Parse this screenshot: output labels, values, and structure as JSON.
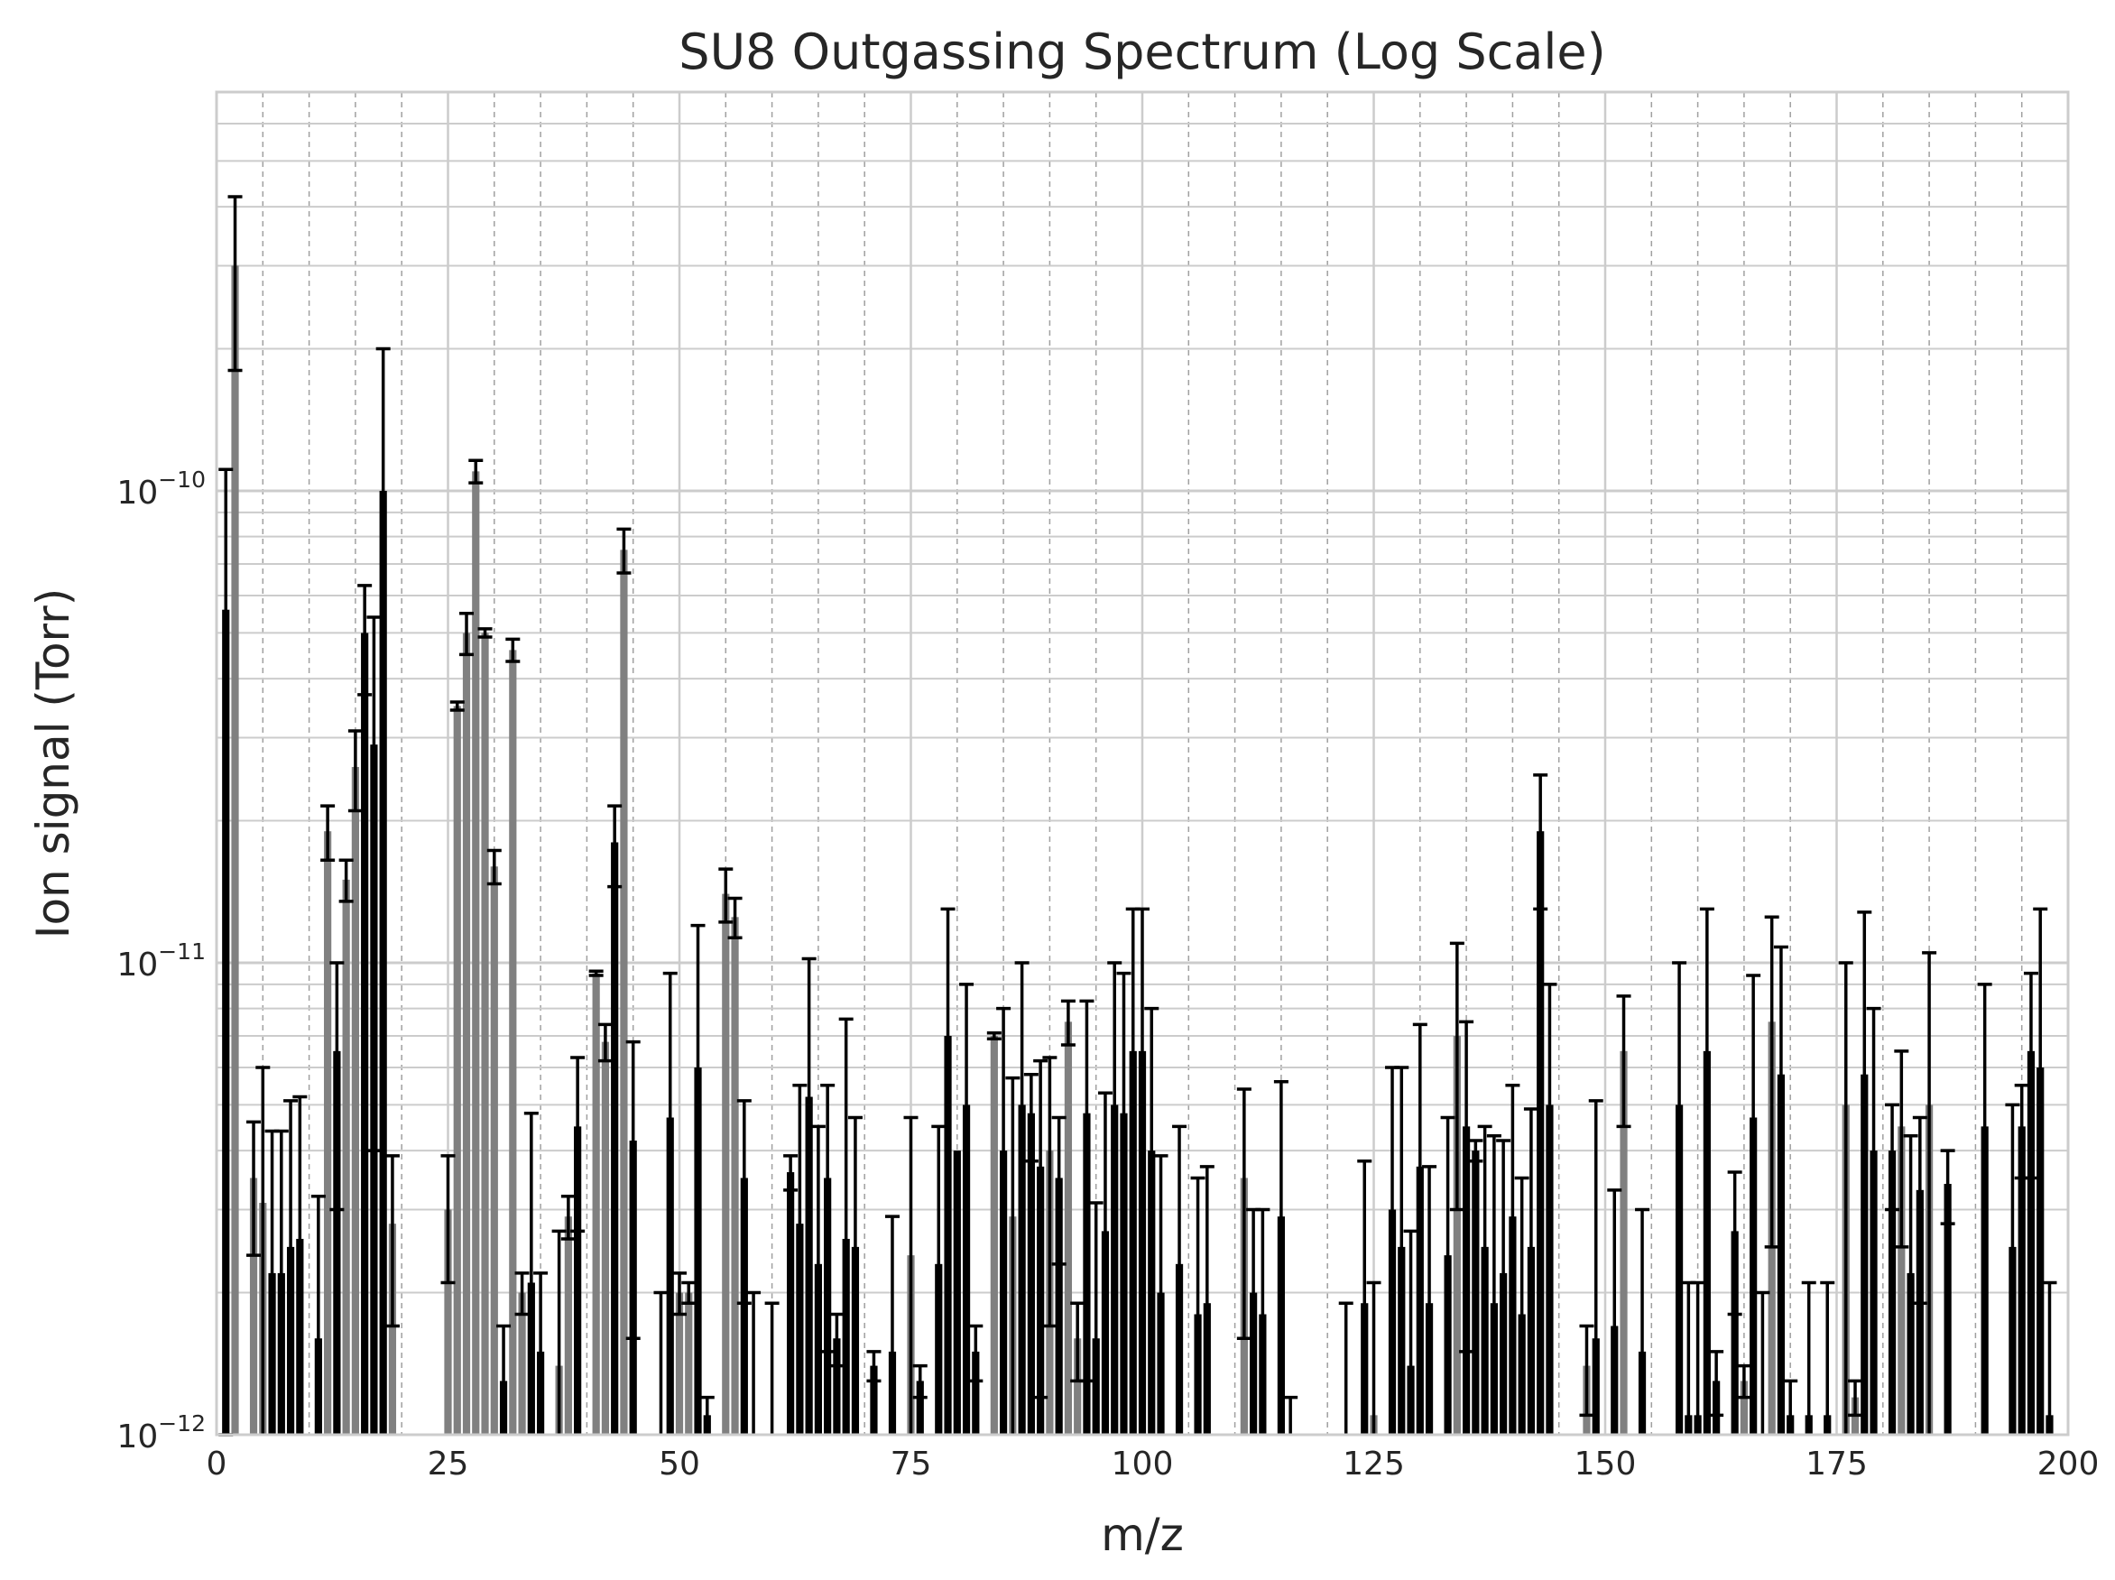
{
  "chart_data": {
    "type": "bar",
    "title": "SU8 Outgassing Spectrum (Log Scale)",
    "xlabel": "m/z",
    "ylabel": "Ion signal (Torr)",
    "xlim": [
      0,
      200
    ],
    "ylim": [
      1e-12,
      7e-10
    ],
    "yscale": "log",
    "grid": true,
    "legend": "none",
    "x_ticks": [
      {
        "value": 0,
        "label": "0"
      },
      {
        "value": 25,
        "label": "25"
      },
      {
        "value": 50,
        "label": "50"
      },
      {
        "value": 75,
        "label": "75"
      },
      {
        "value": 100,
        "label": "100"
      },
      {
        "value": 125,
        "label": "125"
      },
      {
        "value": 150,
        "label": "150"
      },
      {
        "value": 175,
        "label": "175"
      },
      {
        "value": 200,
        "label": "200"
      }
    ],
    "y_ticks": [
      {
        "value": 1e-12,
        "base": "10",
        "exp": "−12"
      },
      {
        "value": 1e-11,
        "base": "10",
        "exp": "−11"
      },
      {
        "value": 1e-10,
        "base": "10",
        "exp": "−10"
      }
    ],
    "colors": {
      "bar_dark": "#000000",
      "bar_light": "#808080",
      "errorbar": "#000000",
      "grid": "#cccccc",
      "minor_grid": "#a0a0a0"
    },
    "bars": [
      {
        "x": 1,
        "y": 5.6e-11,
        "yerr": 5.5e-11,
        "shade": "dark"
      },
      {
        "x": 2,
        "y": 3e-10,
        "yerr": 1.2e-10,
        "shade": "light"
      },
      {
        "x": 4,
        "y": 3.5e-12,
        "yerr": 1.1e-12,
        "shade": "light"
      },
      {
        "x": 5,
        "y": 3.1e-12,
        "yerr": 2.9e-12,
        "shade": "light"
      },
      {
        "x": 6,
        "y": 2.2e-12,
        "yerr": 2.2e-12,
        "shade": "dark"
      },
      {
        "x": 7,
        "y": 2.2e-12,
        "yerr": 2.2e-12,
        "shade": "dark"
      },
      {
        "x": 8,
        "y": 2.5e-12,
        "yerr": 2.6e-12,
        "shade": "dark"
      },
      {
        "x": 9,
        "y": 2.6e-12,
        "yerr": 2.6e-12,
        "shade": "dark"
      },
      {
        "x": 11,
        "y": 1.6e-12,
        "yerr": 1.6e-12,
        "shade": "dark"
      },
      {
        "x": 12,
        "y": 1.9e-11,
        "yerr": 2.5e-12,
        "shade": "light"
      },
      {
        "x": 13,
        "y": 6.5e-12,
        "yerr": 3.5e-12,
        "shade": "dark"
      },
      {
        "x": 14,
        "y": 1.5e-11,
        "yerr": 1.5e-12,
        "shade": "light"
      },
      {
        "x": 15,
        "y": 2.6e-11,
        "yerr": 5e-12,
        "shade": "light"
      },
      {
        "x": 16,
        "y": 5e-11,
        "yerr": 1.3e-11,
        "shade": "dark"
      },
      {
        "x": 17,
        "y": 2.9e-11,
        "yerr": 2.5e-11,
        "shade": "dark"
      },
      {
        "x": 18,
        "y": 1e-10,
        "yerr": 1e-10,
        "shade": "dark"
      },
      {
        "x": 19,
        "y": 2.8e-12,
        "yerr": 1.1e-12,
        "shade": "light"
      },
      {
        "x": 25,
        "y": 3e-12,
        "yerr": 9e-13,
        "shade": "light"
      },
      {
        "x": 26,
        "y": 3.5e-11,
        "yerr": 7e-13,
        "shade": "light"
      },
      {
        "x": 27,
        "y": 5e-11,
        "yerr": 5e-12,
        "shade": "light"
      },
      {
        "x": 28,
        "y": 1.1e-10,
        "yerr": 6e-12,
        "shade": "light"
      },
      {
        "x": 29,
        "y": 5e-11,
        "yerr": 1e-12,
        "shade": "light"
      },
      {
        "x": 30,
        "y": 1.6e-11,
        "yerr": 1.3e-12,
        "shade": "light"
      },
      {
        "x": 31,
        "y": 1.3e-12,
        "yerr": 4e-13,
        "shade": "dark"
      },
      {
        "x": 32,
        "y": 4.6e-11,
        "yerr": 2.5e-12,
        "shade": "light"
      },
      {
        "x": 33,
        "y": 2e-12,
        "yerr": 2e-13,
        "shade": "light"
      },
      {
        "x": 34,
        "y": 2.1e-12,
        "yerr": 2.7e-12,
        "shade": "dark"
      },
      {
        "x": 35,
        "y": 1.5e-12,
        "yerr": 7e-13,
        "shade": "dark"
      },
      {
        "x": 37,
        "y": 1.4e-12,
        "yerr": 1.3e-12,
        "shade": "light"
      },
      {
        "x": 38,
        "y": 2.9e-12,
        "yerr": 3e-13,
        "shade": "light"
      },
      {
        "x": 39,
        "y": 4.5e-12,
        "yerr": 1.8e-12,
        "shade": "dark"
      },
      {
        "x": 41,
        "y": 9.5e-12,
        "yerr": 1e-13,
        "shade": "light"
      },
      {
        "x": 42,
        "y": 6.8e-12,
        "yerr": 6e-13,
        "shade": "light"
      },
      {
        "x": 43,
        "y": 1.8e-11,
        "yerr": 3.5e-12,
        "shade": "dark"
      },
      {
        "x": 44,
        "y": 7.5e-11,
        "yerr": 8e-12,
        "shade": "light"
      },
      {
        "x": 45,
        "y": 4.2e-12,
        "yerr": 2.6e-12,
        "shade": "dark"
      },
      {
        "x": 48,
        "y": 1e-12,
        "yerr": 1e-12,
        "shade": "dark"
      },
      {
        "x": 49,
        "y": 4.7e-12,
        "yerr": 4.8e-12,
        "shade": "dark"
      },
      {
        "x": 50,
        "y": 2e-12,
        "yerr": 2e-13,
        "shade": "light"
      },
      {
        "x": 51,
        "y": 2e-12,
        "yerr": 1e-13,
        "shade": "light"
      },
      {
        "x": 52,
        "y": 6e-12,
        "yerr": 6e-12,
        "shade": "dark"
      },
      {
        "x": 53,
        "y": 1.1e-12,
        "yerr": 1e-13,
        "shade": "dark"
      },
      {
        "x": 55,
        "y": 1.4e-11,
        "yerr": 1.8e-12,
        "shade": "light"
      },
      {
        "x": 56,
        "y": 1.25e-11,
        "yerr": 1.2e-12,
        "shade": "light"
      },
      {
        "x": 57,
        "y": 3.5e-12,
        "yerr": 1.6e-12,
        "shade": "dark"
      },
      {
        "x": 58,
        "y": 1e-12,
        "yerr": 1e-12,
        "shade": "dark"
      },
      {
        "x": 60,
        "y": 1e-12,
        "yerr": 9e-13,
        "shade": "dark"
      },
      {
        "x": 62,
        "y": 3.6e-12,
        "yerr": 3e-13,
        "shade": "dark"
      },
      {
        "x": 63,
        "y": 2.8e-12,
        "yerr": 2.7e-12,
        "shade": "dark"
      },
      {
        "x": 64,
        "y": 5.2e-12,
        "yerr": 5e-12,
        "shade": "dark"
      },
      {
        "x": 65,
        "y": 2.3e-12,
        "yerr": 2.2e-12,
        "shade": "dark"
      },
      {
        "x": 66,
        "y": 3.5e-12,
        "yerr": 2e-12,
        "shade": "dark"
      },
      {
        "x": 67,
        "y": 1.6e-12,
        "yerr": 2e-13,
        "shade": "dark"
      },
      {
        "x": 68,
        "y": 2.6e-12,
        "yerr": 5e-12,
        "shade": "dark"
      },
      {
        "x": 69,
        "y": 2.5e-12,
        "yerr": 2.2e-12,
        "shade": "dark"
      },
      {
        "x": 71,
        "y": 1.4e-12,
        "yerr": 1e-13,
        "shade": "dark"
      },
      {
        "x": 73,
        "y": 1.5e-12,
        "yerr": 1.4e-12,
        "shade": "dark"
      },
      {
        "x": 75,
        "y": 2.4e-12,
        "yerr": 2.3e-12,
        "shade": "light"
      },
      {
        "x": 76,
        "y": 1.3e-12,
        "yerr": 1e-13,
        "shade": "dark"
      },
      {
        "x": 78,
        "y": 2.3e-12,
        "yerr": 2.2e-12,
        "shade": "dark"
      },
      {
        "x": 79,
        "y": 7e-12,
        "yerr": 6e-12,
        "shade": "dark"
      },
      {
        "x": 80,
        "y": 4e-12,
        "yerr": 0,
        "shade": "dark"
      },
      {
        "x": 81,
        "y": 5e-12,
        "yerr": 4e-12,
        "shade": "dark"
      },
      {
        "x": 82,
        "y": 1.5e-12,
        "yerr": 2e-13,
        "shade": "dark"
      },
      {
        "x": 84,
        "y": 7e-12,
        "yerr": 1e-13,
        "shade": "light"
      },
      {
        "x": 85,
        "y": 4e-12,
        "yerr": 4e-12,
        "shade": "dark"
      },
      {
        "x": 86,
        "y": 2.9e-12,
        "yerr": 2.8e-12,
        "shade": "light"
      },
      {
        "x": 87,
        "y": 5e-12,
        "yerr": 5e-12,
        "shade": "dark"
      },
      {
        "x": 88,
        "y": 4.8e-12,
        "yerr": 1e-12,
        "shade": "dark"
      },
      {
        "x": 89,
        "y": 3.7e-12,
        "yerr": 2.5e-12,
        "shade": "dark"
      },
      {
        "x": 90,
        "y": 4e-12,
        "yerr": 2.3e-12,
        "shade": "light"
      },
      {
        "x": 91,
        "y": 3.5e-12,
        "yerr": 1.2e-12,
        "shade": "dark"
      },
      {
        "x": 92,
        "y": 7.5e-12,
        "yerr": 8e-13,
        "shade": "light"
      },
      {
        "x": 93,
        "y": 1.6e-12,
        "yerr": 3e-13,
        "shade": "light"
      },
      {
        "x": 94,
        "y": 4.8e-12,
        "yerr": 3.5e-12,
        "shade": "dark"
      },
      {
        "x": 95,
        "y": 1.6e-12,
        "yerr": 1.5e-12,
        "shade": "dark"
      },
      {
        "x": 96,
        "y": 2.7e-12,
        "yerr": 2.6e-12,
        "shade": "dark"
      },
      {
        "x": 97,
        "y": 5e-12,
        "yerr": 5e-12,
        "shade": "dark"
      },
      {
        "x": 98,
        "y": 4.8e-12,
        "yerr": 4.7e-12,
        "shade": "dark"
      },
      {
        "x": 99,
        "y": 6.5e-12,
        "yerr": 6.5e-12,
        "shade": "dark"
      },
      {
        "x": 100,
        "y": 6.5e-12,
        "yerr": 6.5e-12,
        "shade": "dark"
      },
      {
        "x": 101,
        "y": 4e-12,
        "yerr": 4e-12,
        "shade": "dark"
      },
      {
        "x": 102,
        "y": 2e-12,
        "yerr": 1.9e-12,
        "shade": "dark"
      },
      {
        "x": 104,
        "y": 2.3e-12,
        "yerr": 2.2e-12,
        "shade": "dark"
      },
      {
        "x": 106,
        "y": 1.8e-12,
        "yerr": 1.7e-12,
        "shade": "dark"
      },
      {
        "x": 107,
        "y": 1.9e-12,
        "yerr": 1.8e-12,
        "shade": "dark"
      },
      {
        "x": 111,
        "y": 3.5e-12,
        "yerr": 1.9e-12,
        "shade": "light"
      },
      {
        "x": 112,
        "y": 2e-12,
        "yerr": 1e-12,
        "shade": "dark"
      },
      {
        "x": 113,
        "y": 1.8e-12,
        "yerr": 1.2e-12,
        "shade": "dark"
      },
      {
        "x": 115,
        "y": 2.9e-12,
        "yerr": 2.7e-12,
        "shade": "dark"
      },
      {
        "x": 116,
        "y": 1e-12,
        "yerr": 2e-13,
        "shade": "dark"
      },
      {
        "x": 122,
        "y": 1e-12,
        "yerr": 9e-13,
        "shade": "dark"
      },
      {
        "x": 124,
        "y": 1.9e-12,
        "yerr": 1.9e-12,
        "shade": "dark"
      },
      {
        "x": 125,
        "y": 1.1e-12,
        "yerr": 1e-12,
        "shade": "light"
      },
      {
        "x": 127,
        "y": 3e-12,
        "yerr": 3e-12,
        "shade": "dark"
      },
      {
        "x": 128,
        "y": 2.5e-12,
        "yerr": 3.5e-12,
        "shade": "dark"
      },
      {
        "x": 129,
        "y": 1.4e-12,
        "yerr": 1.3e-12,
        "shade": "dark"
      },
      {
        "x": 130,
        "y": 3.7e-12,
        "yerr": 3.7e-12,
        "shade": "dark"
      },
      {
        "x": 131,
        "y": 1.9e-12,
        "yerr": 1.8e-12,
        "shade": "dark"
      },
      {
        "x": 133,
        "y": 2.4e-12,
        "yerr": 2.3e-12,
        "shade": "dark"
      },
      {
        "x": 134,
        "y": 7e-12,
        "yerr": 4e-12,
        "shade": "light"
      },
      {
        "x": 135,
        "y": 4.5e-12,
        "yerr": 3e-12,
        "shade": "dark"
      },
      {
        "x": 136,
        "y": 4e-12,
        "yerr": 2e-13,
        "shade": "dark"
      },
      {
        "x": 137,
        "y": 2.5e-12,
        "yerr": 2e-12,
        "shade": "dark"
      },
      {
        "x": 138,
        "y": 1.9e-12,
        "yerr": 2.4e-12,
        "shade": "dark"
      },
      {
        "x": 139,
        "y": 2.2e-12,
        "yerr": 2e-12,
        "shade": "dark"
      },
      {
        "x": 140,
        "y": 2.9e-12,
        "yerr": 2.6e-12,
        "shade": "dark"
      },
      {
        "x": 141,
        "y": 1.8e-12,
        "yerr": 1.7e-12,
        "shade": "dark"
      },
      {
        "x": 142,
        "y": 2.5e-12,
        "yerr": 2.4e-12,
        "shade": "dark"
      },
      {
        "x": 143,
        "y": 1.9e-11,
        "yerr": 6e-12,
        "shade": "dark"
      },
      {
        "x": 144,
        "y": 5e-12,
        "yerr": 4e-12,
        "shade": "dark"
      },
      {
        "x": 148,
        "y": 1.4e-12,
        "yerr": 3e-13,
        "shade": "light"
      },
      {
        "x": 149,
        "y": 1.6e-12,
        "yerr": 3.5e-12,
        "shade": "dark"
      },
      {
        "x": 151,
        "y": 1.7e-12,
        "yerr": 1.6e-12,
        "shade": "dark"
      },
      {
        "x": 152,
        "y": 6.5e-12,
        "yerr": 2e-12,
        "shade": "light"
      },
      {
        "x": 154,
        "y": 1.5e-12,
        "yerr": 1.5e-12,
        "shade": "dark"
      },
      {
        "x": 158,
        "y": 5e-12,
        "yerr": 5e-12,
        "shade": "dark"
      },
      {
        "x": 159,
        "y": 1.1e-12,
        "yerr": 1e-12,
        "shade": "dark"
      },
      {
        "x": 160,
        "y": 1.1e-12,
        "yerr": 1e-12,
        "shade": "dark"
      },
      {
        "x": 161,
        "y": 6.5e-12,
        "yerr": 6.5e-12,
        "shade": "dark"
      },
      {
        "x": 162,
        "y": 1.3e-12,
        "yerr": 2e-13,
        "shade": "dark"
      },
      {
        "x": 164,
        "y": 2.7e-12,
        "yerr": 9e-13,
        "shade": "dark"
      },
      {
        "x": 165,
        "y": 1.3e-12,
        "yerr": 1e-13,
        "shade": "light"
      },
      {
        "x": 166,
        "y": 4.7e-12,
        "yerr": 4.7e-12,
        "shade": "dark"
      },
      {
        "x": 167,
        "y": 1e-12,
        "yerr": 1e-12,
        "shade": "dark"
      },
      {
        "x": 168,
        "y": 7.5e-12,
        "yerr": 5e-12,
        "shade": "light"
      },
      {
        "x": 169,
        "y": 5.8e-12,
        "yerr": 5e-12,
        "shade": "dark"
      },
      {
        "x": 170,
        "y": 1.1e-12,
        "yerr": 2e-13,
        "shade": "dark"
      },
      {
        "x": 172,
        "y": 1.1e-12,
        "yerr": 1e-12,
        "shade": "dark"
      },
      {
        "x": 174,
        "y": 1.1e-12,
        "yerr": 1e-12,
        "shade": "dark"
      },
      {
        "x": 176,
        "y": 5e-12,
        "yerr": 5e-12,
        "shade": "light"
      },
      {
        "x": 177,
        "y": 1.2e-12,
        "yerr": 1e-13,
        "shade": "light"
      },
      {
        "x": 178,
        "y": 5.8e-12,
        "yerr": 7e-12,
        "shade": "dark"
      },
      {
        "x": 179,
        "y": 4e-12,
        "yerr": 4e-12,
        "shade": "dark"
      },
      {
        "x": 181,
        "y": 4e-12,
        "yerr": 1e-12,
        "shade": "dark"
      },
      {
        "x": 182,
        "y": 4.5e-12,
        "yerr": 2e-12,
        "shade": "light"
      },
      {
        "x": 183,
        "y": 2.2e-12,
        "yerr": 2.1e-12,
        "shade": "dark"
      },
      {
        "x": 184,
        "y": 3.3e-12,
        "yerr": 1.4e-12,
        "shade": "dark"
      },
      {
        "x": 185,
        "y": 5e-12,
        "yerr": 5.5e-12,
        "shade": "light"
      },
      {
        "x": 187,
        "y": 3.4e-12,
        "yerr": 6e-13,
        "shade": "dark"
      },
      {
        "x": 191,
        "y": 4.5e-12,
        "yerr": 4.5e-12,
        "shade": "dark"
      },
      {
        "x": 194,
        "y": 2.5e-12,
        "yerr": 2.5e-12,
        "shade": "dark"
      },
      {
        "x": 195,
        "y": 4.5e-12,
        "yerr": 1e-12,
        "shade": "dark"
      },
      {
        "x": 196,
        "y": 6.5e-12,
        "yerr": 3e-12,
        "shade": "dark"
      },
      {
        "x": 197,
        "y": 6e-12,
        "yerr": 7e-12,
        "shade": "dark"
      },
      {
        "x": 198,
        "y": 1.1e-12,
        "yerr": 1e-12,
        "shade": "dark"
      }
    ]
  }
}
